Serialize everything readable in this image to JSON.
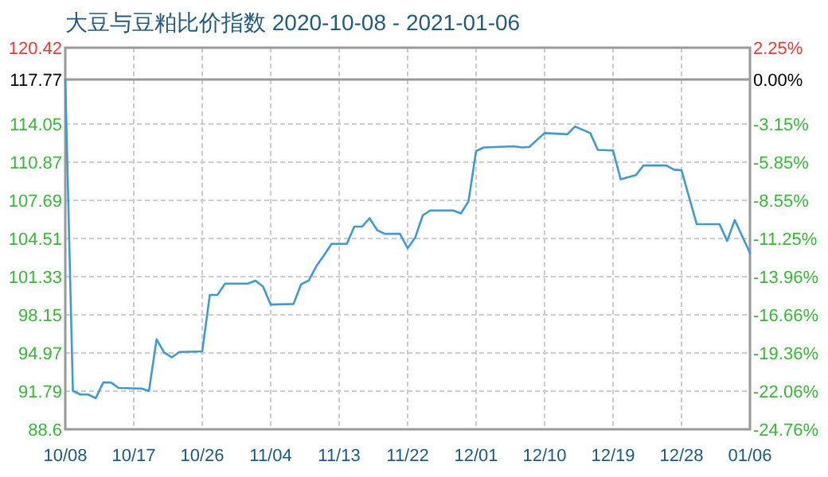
{
  "chart_data": {
    "type": "line",
    "title": "大豆与豆粕比价指数 2020-10-08 - 2021-01-06",
    "x": [
      "2020-10-08",
      "2020-10-09",
      "2020-10-10",
      "2020-10-11",
      "2020-10-12",
      "2020-10-13",
      "2020-10-14",
      "2020-10-15",
      "2020-10-18",
      "2020-10-19",
      "2020-10-20",
      "2020-10-21",
      "2020-10-22",
      "2020-10-23",
      "2020-10-26",
      "2020-10-27",
      "2020-10-28",
      "2020-10-29",
      "2020-11-01",
      "2020-11-02",
      "2020-11-03",
      "2020-11-04",
      "2020-11-07",
      "2020-11-08",
      "2020-11-09",
      "2020-11-10",
      "2020-11-11",
      "2020-11-12",
      "2020-11-14",
      "2020-11-15",
      "2020-11-16",
      "2020-11-17",
      "2020-11-18",
      "2020-11-19",
      "2020-11-21",
      "2020-11-22",
      "2020-11-23",
      "2020-11-24",
      "2020-11-25",
      "2020-11-28",
      "2020-11-29",
      "2020-11-30",
      "2020-12-01",
      "2020-12-02",
      "2020-12-06",
      "2020-12-07",
      "2020-12-08",
      "2020-12-10",
      "2020-12-13",
      "2020-12-14",
      "2020-12-16",
      "2020-12-17",
      "2020-12-19",
      "2020-12-20",
      "2020-12-22",
      "2020-12-23",
      "2020-12-26",
      "2020-12-27",
      "2020-12-28",
      "2020-12-30",
      "2021-01-02",
      "2021-01-03",
      "2021-01-04",
      "2021-01-06"
    ],
    "series": [
      {
        "color": "#3d9ad8",
        "values": [
          117.77,
          91.8,
          91.5,
          91.5,
          91.2,
          92.5,
          92.5,
          92.05,
          92.0,
          91.8,
          96.1,
          95.0,
          94.6,
          95.05,
          95.1,
          99.8,
          99.8,
          100.75,
          100.75,
          101.0,
          100.5,
          99.0,
          99.05,
          100.7,
          101.0,
          102.2,
          103.1,
          104.06,
          104.06,
          105.5,
          105.5,
          106.2,
          105.2,
          104.9,
          104.9,
          103.7,
          104.6,
          106.45,
          106.85,
          106.85,
          106.6,
          107.6,
          111.8,
          112.1,
          112.2,
          112.1,
          112.15,
          113.3,
          113.2,
          113.85,
          113.3,
          111.9,
          111.85,
          109.45,
          109.8,
          110.6,
          110.6,
          110.25,
          110.2,
          105.7,
          105.7,
          104.3,
          106.05,
          103.3
        ]
      }
    ],
    "xlim": [
      "2020-10-08",
      "2021-01-06"
    ],
    "xticks": [
      {
        "value": "2020-10-08",
        "label": "10/08"
      },
      {
        "value": "2020-10-17",
        "label": "10/17"
      },
      {
        "value": "2020-10-26",
        "label": "10/26"
      },
      {
        "value": "2020-11-04",
        "label": "11/04"
      },
      {
        "value": "2020-11-13",
        "label": "11/13"
      },
      {
        "value": "2020-11-22",
        "label": "11/22"
      },
      {
        "value": "2020-12-01",
        "label": "12/01"
      },
      {
        "value": "2020-12-10",
        "label": "12/10"
      },
      {
        "value": "2020-12-19",
        "label": "12/19"
      },
      {
        "value": "2020-12-28",
        "label": "12/28"
      },
      {
        "value": "2021-01-06",
        "label": "01/06"
      }
    ],
    "ylim": [
      88.6,
      120.42
    ],
    "yticks": [
      {
        "value": 88.6,
        "label": "88.6"
      },
      91.79,
      94.97,
      98.15,
      101.33,
      104.51,
      107.69,
      110.87,
      114.05,
      117.77,
      120.42
    ],
    "y2lim": [
      -24.76,
      2.25
    ],
    "y2ticks": [
      {
        "value": -24.76,
        "label": "-24.76%"
      },
      {
        "value": -22.06,
        "label": "-22.06%"
      },
      {
        "value": -19.36,
        "label": "-19.36%"
      },
      {
        "value": -16.66,
        "label": "-16.66%"
      },
      {
        "value": -13.96,
        "label": "-13.96%"
      },
      {
        "value": -11.25,
        "label": "-11.25%"
      },
      {
        "value": -8.55,
        "label": "-8.55%"
      },
      {
        "value": -5.85,
        "label": "-5.85%"
      },
      {
        "value": -3.15,
        "label": "-3.15%"
      },
      {
        "value": 0,
        "label": "0.00%"
      },
      {
        "value": 2.25,
        "label": "2.25%"
      }
    ],
    "grid": true,
    "ref_lines": [
      {
        "axis": "y",
        "value": 117.77,
        "color": "#999999"
      }
    ]
  }
}
